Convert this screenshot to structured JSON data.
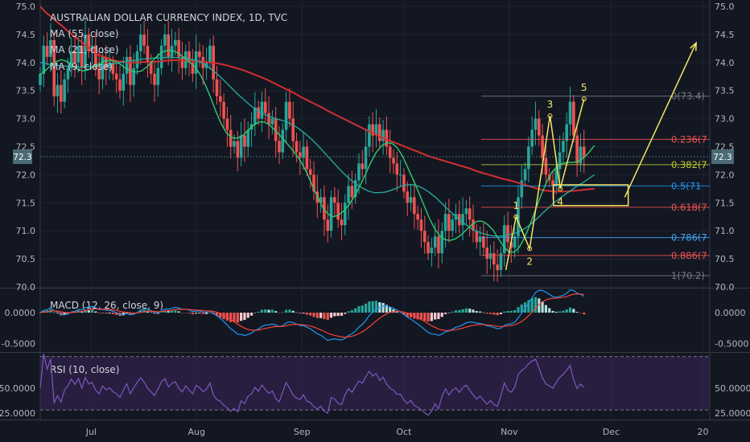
{
  "header": {
    "title": "AUSTRALIAN DOLLAR CURRENCY INDEX, 1D, TVC",
    "studies": [
      "MA (55, close)",
      "MA (21, close)",
      "MA (9, close)"
    ]
  },
  "price_badge": "72.3",
  "colors": {
    "background": "#131722",
    "grid": "#1f2432",
    "axis_text": "#b2b5be",
    "candle_up": "#26a69a",
    "candle_down": "#ef5350",
    "ma55": "#d32f2f",
    "ma21": "#26a69a",
    "ma9": "#2ecc71",
    "macd": "#2196f3",
    "signal": "#f44336",
    "rsi": "#7e57c2",
    "rsi_band": "#3b2557",
    "wave": "#f5e663",
    "price_badge": "#4a6b73"
  },
  "chart_data": [
    {
      "type": "candlestick",
      "panel": "price",
      "y_ticks": [
        70.0,
        70.5,
        71.0,
        71.5,
        72.0,
        72.5,
        73.0,
        73.5,
        74.0,
        74.5,
        75.0
      ],
      "y_tick_labels": [
        "70.0",
        "70.5",
        "71.0",
        "71.5",
        "72.0",
        "72.5",
        "73.0",
        "73.5",
        "74.0",
        "74.5",
        "75.0"
      ],
      "ylim": [
        70.0,
        75.0
      ],
      "x_ticks": [
        {
          "label": "Jul",
          "day": 15
        },
        {
          "label": "Aug",
          "day": 46
        },
        {
          "label": "Sep",
          "day": 77
        },
        {
          "label": "Oct",
          "day": 107
        },
        {
          "label": "Nov",
          "day": 138
        },
        {
          "label": "Dec",
          "day": 168
        },
        {
          "label": "20",
          "day": 195
        }
      ],
      "xlim": [
        0,
        197
      ],
      "closes": [
        73.8,
        74.3,
        74.1,
        74.4,
        73.4,
        73.6,
        73.3,
        73.7,
        73.9,
        74.2,
        74.0,
        74.3,
        73.9,
        74.5,
        74.2,
        74.3,
        73.9,
        73.7,
        74.1,
        73.9,
        74.0,
        73.8,
        73.7,
        73.5,
        73.8,
        74.1,
        73.6,
        73.9,
        74.2,
        74.5,
        74.3,
        74.0,
        73.8,
        73.6,
        73.9,
        74.3,
        74.5,
        74.1,
        74.3,
        74.4,
        74.1,
        73.9,
        74.2,
        74.0,
        73.8,
        74.2,
        74.1,
        73.9,
        74.0,
        74.3,
        73.7,
        73.4,
        73.3,
        73.0,
        72.8,
        72.5,
        72.6,
        72.3,
        72.7,
        72.5,
        72.8,
        72.9,
        73.2,
        73.0,
        73.3,
        73.1,
        72.9,
        73.0,
        72.6,
        72.4,
        72.8,
        73.3,
        73.0,
        72.6,
        72.4,
        72.3,
        72.5,
        72.1,
        72.0,
        71.7,
        71.5,
        71.6,
        71.2,
        71.0,
        71.6,
        71.5,
        71.2,
        71.1,
        71.5,
        71.8,
        71.6,
        71.9,
        72.2,
        72.1,
        72.5,
        72.9,
        72.7,
        72.9,
        72.6,
        72.8,
        72.5,
        72.3,
        72.2,
        72.0,
        72.0,
        71.7,
        71.5,
        71.6,
        71.3,
        71.2,
        71.0,
        70.8,
        70.6,
        70.7,
        70.9,
        70.6,
        71.0,
        71.3,
        71.0,
        71.2,
        71.3,
        71.1,
        71.3,
        71.4,
        71.2,
        71.0,
        70.8,
        70.9,
        70.7,
        70.5,
        70.6,
        70.4,
        70.3,
        70.6,
        71.1,
        70.8,
        70.7,
        70.9,
        71.6,
        71.9,
        72.1,
        72.5,
        72.8,
        73.0,
        72.7,
        72.3,
        72.0,
        71.9,
        71.8,
        72.1,
        72.4,
        72.6,
        72.9,
        73.3,
        72.7,
        72.2,
        72.5,
        72.3
      ],
      "series": [
        {
          "name": "MA (55, close)",
          "values": [
            75.0,
            74.89,
            74.81,
            74.72,
            74.64,
            74.55,
            74.47,
            74.39,
            74.31,
            74.23,
            74.15,
            74.11,
            74.08,
            74.04,
            74.02,
            74.01,
            74.0,
            74.0,
            74.01,
            74.01,
            74.01,
            74.02,
            74.03,
            74.04,
            74.04,
            74.05,
            74.04,
            74.03,
            74.02,
            74.01,
            74.0,
            73.99,
            73.97,
            73.95,
            73.92,
            73.89,
            73.86,
            73.82,
            73.78,
            73.74,
            73.7,
            73.65,
            73.6,
            73.55,
            73.5,
            73.45,
            73.39,
            73.34,
            73.29,
            73.24,
            73.19,
            73.13,
            73.08,
            73.03,
            72.98,
            72.93,
            72.88,
            72.83,
            72.78,
            72.73,
            72.68,
            72.64,
            72.6,
            72.56,
            72.52,
            72.48,
            72.44,
            72.4,
            72.36,
            72.32,
            72.29,
            72.26,
            72.23,
            72.2,
            72.17,
            72.14,
            72.11,
            72.07,
            72.04,
            72.01,
            71.98,
            71.95,
            71.92,
            71.9,
            71.87,
            71.84,
            71.81,
            71.78,
            71.75,
            71.72,
            71.71,
            71.7,
            71.7,
            71.7,
            71.71,
            71.72,
            71.73,
            71.74,
            71.75
          ]
        },
        {
          "name": "MA (21, close)",
          "values": [
            74.0,
            73.98,
            73.96,
            73.95,
            73.94,
            73.93,
            73.92,
            73.92,
            73.92,
            73.93,
            73.94,
            73.95,
            73.97,
            73.98,
            74.0,
            74.01,
            74.03,
            74.04,
            74.06,
            74.07,
            74.08,
            74.08,
            74.09,
            74.09,
            74.09,
            74.08,
            74.07,
            74.05,
            74.02,
            73.97,
            73.9,
            73.82,
            73.73,
            73.63,
            73.53,
            73.43,
            73.34,
            73.25,
            73.17,
            73.11,
            73.06,
            73.02,
            72.99,
            72.96,
            72.92,
            72.87,
            72.8,
            72.72,
            72.63,
            72.53,
            72.42,
            72.31,
            72.2,
            72.09,
            71.99,
            71.9,
            71.82,
            71.76,
            71.71,
            71.68,
            71.68,
            71.69,
            71.72,
            71.76,
            71.8,
            71.82,
            71.82,
            71.79,
            71.74,
            71.67,
            71.59,
            71.49,
            71.39,
            71.3,
            71.21,
            71.13,
            71.06,
            71.0,
            70.96,
            70.93,
            70.91,
            70.9,
            70.91,
            70.93,
            70.96,
            71.0,
            71.06,
            71.14,
            71.23,
            71.33,
            71.42,
            71.51,
            71.59,
            71.66,
            71.73,
            71.8,
            71.86,
            71.93,
            72.0
          ]
        },
        {
          "name": "MA (9, close)",
          "values": [
            73.78,
            73.86,
            73.95,
            74.02,
            74.05,
            74.02,
            73.95,
            73.88,
            73.85,
            73.87,
            73.92,
            73.98,
            74.02,
            74.04,
            74.02,
            73.97,
            73.9,
            73.85,
            73.83,
            73.85,
            73.92,
            74.02,
            74.12,
            74.19,
            74.22,
            74.21,
            74.16,
            74.09,
            74.01,
            73.93,
            73.79,
            73.6,
            73.37,
            73.12,
            72.9,
            72.74,
            72.66,
            72.65,
            72.7,
            72.79,
            72.88,
            72.94,
            72.94,
            72.89,
            72.8,
            72.7,
            72.59,
            72.48,
            72.36,
            72.22,
            72.04,
            71.82,
            71.61,
            71.42,
            71.3,
            71.25,
            71.28,
            71.36,
            71.47,
            71.62,
            71.8,
            72.0,
            72.21,
            72.39,
            72.51,
            72.57,
            72.56,
            72.48,
            72.33,
            72.12,
            71.91,
            71.69,
            71.46,
            71.23,
            71.04,
            70.91,
            70.84,
            70.83,
            70.86,
            70.93,
            71.02,
            71.11,
            71.17,
            71.17,
            71.11,
            71.01,
            70.86,
            70.71,
            70.62,
            70.62,
            70.72,
            70.9,
            71.13,
            71.39,
            71.64,
            71.86,
            72.04,
            72.15,
            72.2,
            72.22,
            72.22,
            72.24,
            72.3,
            72.4,
            72.52
          ]
        }
      ],
      "price_levels": [
        {
          "label": "0(73.4)",
          "value": 73.4
        },
        {
          "label": "0.236(7",
          "value": 72.63
        },
        {
          "label": "0.382(7",
          "value": 72.18
        },
        {
          "label": "0.5(71",
          "value": 71.8
        },
        {
          "label": "0.618(7",
          "value": 71.42
        },
        {
          "label": "0.786(7",
          "value": 70.88
        },
        {
          "label": "0.886(7",
          "value": 70.56
        },
        {
          "label": "1(70.2)",
          "value": 70.2
        }
      ],
      "wave_points": [
        {
          "label": "1",
          "day": 140,
          "value": 71.25
        },
        {
          "label": "2",
          "day": 144,
          "value": 70.68
        },
        {
          "label": "3",
          "day": 150,
          "value": 73.05
        },
        {
          "label": "4",
          "day": 153,
          "value": 71.75
        },
        {
          "label": "5",
          "day": 160,
          "value": 73.35
        }
      ],
      "wave_start": {
        "day": 137,
        "value": 70.3
      },
      "projection_arrow": {
        "from_day": 172,
        "from_value": 71.6,
        "to_day": 193,
        "to_value": 74.35
      },
      "target_box": {
        "day_start": 151,
        "day_end": 173,
        "value_top": 71.82,
        "value_bottom": 71.45
      }
    },
    {
      "type": "line",
      "panel": "macd",
      "title": "MACD (12, 26, close, 9)",
      "y_tick_labels": [
        "0.0000",
        "-0.5000"
      ],
      "y_ticks": [
        0.0,
        -0.5
      ],
      "ylim": [
        -0.62,
        0.35
      ]
    },
    {
      "type": "line",
      "panel": "rsi",
      "title": "RSI (10, close)",
      "y_tick_labels": [
        "50.0000",
        "25.0000"
      ],
      "y_ticks": [
        50,
        25
      ],
      "ylim": [
        20,
        85
      ],
      "band": [
        30,
        70
      ]
    }
  ]
}
